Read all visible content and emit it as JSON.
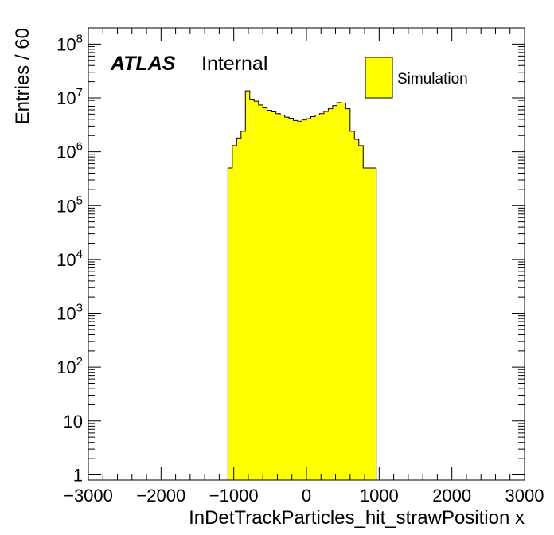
{
  "chart_data": {
    "type": "bar",
    "histogram": true,
    "xlabel": "InDetTrackParticles_hit_strawPosition x",
    "ylabel": "Entries / 60",
    "xlim": [
      -3000,
      3000
    ],
    "ylim": [
      0.8,
      200000000
    ],
    "yscale": "log",
    "x_ticks": [
      "−3000",
      "−2000",
      "−1000",
      "0",
      "1000",
      "2000",
      "3000"
    ],
    "y_ticks": [
      {
        "value": 1,
        "base": "1",
        "exp": ""
      },
      {
        "value": 10,
        "base": "10",
        "exp": ""
      },
      {
        "value": 100,
        "base": "10",
        "exp": "2"
      },
      {
        "value": 1000,
        "base": "10",
        "exp": "3"
      },
      {
        "value": 10000,
        "base": "10",
        "exp": "4"
      },
      {
        "value": 100000,
        "base": "10",
        "exp": "5"
      },
      {
        "value": 1000000,
        "base": "10",
        "exp": "6"
      },
      {
        "value": 10000000,
        "base": "10",
        "exp": "7"
      },
      {
        "value": 100000000,
        "base": "10",
        "exp": "8"
      }
    ],
    "legend_position": "top-right",
    "fill_color": "#ffff00",
    "line_color": "#000000",
    "series": [
      {
        "name": "Simulation",
        "bin_width": 60,
        "bin_edges_start": -1080,
        "values": [
          500000,
          1300000,
          1800000,
          2400000,
          13500000,
          9500000,
          8700000,
          7400000,
          6500000,
          5900000,
          5500000,
          5100000,
          4800000,
          4400000,
          4200000,
          3800000,
          3700000,
          3900000,
          4100000,
          4500000,
          4800000,
          5100000,
          5600000,
          6300000,
          7200000,
          8200000,
          8000000,
          6300000,
          2400000,
          1700000,
          1300000,
          500000,
          500000,
          500000
        ]
      }
    ]
  },
  "atlas_label": {
    "bold": "ATLAS",
    "text": "Internal"
  },
  "legend": {
    "entry": "Simulation"
  }
}
